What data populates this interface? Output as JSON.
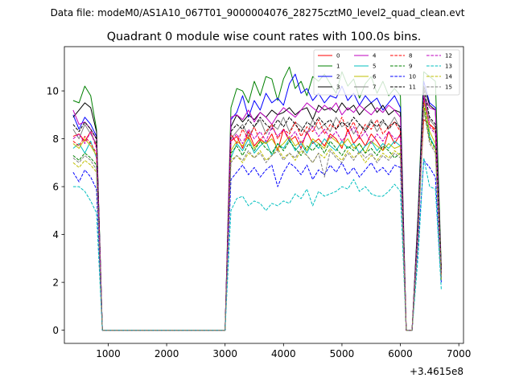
{
  "chart_data": {
    "type": "line",
    "suptitle": "Data file: modeM0/AS1A10_067T01_9000004076_28275cztM0_level2_quad_clean.evt",
    "title": "Quadrant 0 module wise count rates with 100.0s bins.",
    "xlabel": "",
    "ylabel": "",
    "x_offset_label": "+3.4615e8",
    "xlim": [
      250,
      7080
    ],
    "ylim": [
      -0.55,
      11.85
    ],
    "x_ticks": [
      1000,
      2000,
      3000,
      4000,
      5000,
      6000,
      7000
    ],
    "y_ticks": [
      0,
      2,
      4,
      6,
      8,
      10
    ],
    "legend_position": "top-right",
    "x": [
      400,
      500,
      600,
      700,
      800,
      900,
      1000,
      1100,
      1200,
      1300,
      1400,
      1500,
      1600,
      1700,
      1800,
      1900,
      2000,
      2100,
      2200,
      2300,
      2400,
      2500,
      2600,
      2700,
      2800,
      2900,
      3000,
      3100,
      3200,
      3300,
      3400,
      3500,
      3600,
      3700,
      3800,
      3900,
      4000,
      4100,
      4200,
      4300,
      4400,
      4500,
      4600,
      4700,
      4800,
      4900,
      5000,
      5100,
      5200,
      5300,
      5400,
      5500,
      5600,
      5700,
      5800,
      5900,
      6000,
      6100,
      6200,
      6300,
      6400,
      6500,
      6600,
      6700
    ],
    "series": [
      {
        "name": "0",
        "color": "#ff0000",
        "dash": "solid",
        "values": [
          8.1,
          8.2,
          7.9,
          8.3,
          7.7,
          0.0,
          0.0,
          0.0,
          0.0,
          0.0,
          0.0,
          0.0,
          0.0,
          0.0,
          0.0,
          0.0,
          0.0,
          0.0,
          0.0,
          0.0,
          0.0,
          0.0,
          0.0,
          0.0,
          0.0,
          0.0,
          0.0,
          7.9,
          8.1,
          7.6,
          8.3,
          7.7,
          8.0,
          7.8,
          8.2,
          7.5,
          8.4,
          7.9,
          8.1,
          7.6,
          8.3,
          7.8,
          8.0,
          7.7,
          8.2,
          8.0,
          7.6,
          8.4,
          7.8,
          8.1,
          7.7,
          8.2,
          7.9,
          7.5,
          8.3,
          7.8,
          8.2,
          0.0,
          0.0,
          4.5,
          8.8,
          8.6,
          8.4,
          2.6
        ]
      },
      {
        "name": "1",
        "color": "#008000",
        "dash": "solid",
        "values": [
          9.6,
          9.5,
          10.2,
          9.8,
          8.4,
          0.0,
          0.0,
          0.0,
          0.0,
          0.0,
          0.0,
          0.0,
          0.0,
          0.0,
          0.0,
          0.0,
          0.0,
          0.0,
          0.0,
          0.0,
          0.0,
          0.0,
          0.0,
          0.0,
          0.0,
          0.0,
          0.0,
          9.3,
          10.1,
          10.0,
          9.5,
          10.4,
          9.8,
          10.6,
          10.5,
          9.6,
          10.5,
          11.0,
          10.1,
          10.4,
          9.8,
          10.6,
          10.4,
          10.7,
          10.3,
          9.9,
          10.8,
          10.2,
          10.5,
          9.7,
          10.3,
          10.6,
          9.9,
          10.4,
          9.8,
          10.1,
          9.8,
          0.0,
          0.0,
          4.8,
          10.8,
          10.6,
          10.4,
          2.6
        ]
      },
      {
        "name": "2",
        "color": "#0000ff",
        "dash": "solid",
        "values": [
          9.0,
          8.4,
          8.9,
          8.6,
          8.1,
          0.0,
          0.0,
          0.0,
          0.0,
          0.0,
          0.0,
          0.0,
          0.0,
          0.0,
          0.0,
          0.0,
          0.0,
          0.0,
          0.0,
          0.0,
          0.0,
          0.0,
          0.0,
          0.0,
          0.0,
          0.0,
          0.0,
          8.8,
          9.1,
          9.8,
          8.9,
          9.6,
          9.2,
          9.9,
          9.5,
          9.7,
          9.4,
          10.3,
          10.7,
          9.9,
          10.1,
          9.6,
          9.9,
          9.5,
          9.8,
          9.7,
          10.2,
          9.6,
          9.9,
          9.4,
          9.8,
          9.5,
          9.7,
          9.2,
          9.5,
          9.8,
          9.3,
          0.0,
          0.0,
          4.6,
          10.4,
          9.5,
          9.3,
          2.4
        ]
      },
      {
        "name": "3",
        "color": "#000000",
        "dash": "solid",
        "values": [
          8.9,
          9.2,
          9.5,
          9.3,
          8.3,
          0.0,
          0.0,
          0.0,
          0.0,
          0.0,
          0.0,
          0.0,
          0.0,
          0.0,
          0.0,
          0.0,
          0.0,
          0.0,
          0.0,
          0.0,
          0.0,
          0.0,
          0.0,
          0.0,
          0.0,
          0.0,
          0.0,
          8.5,
          9.0,
          8.7,
          9.0,
          8.8,
          9.1,
          8.9,
          9.2,
          9.0,
          9.1,
          9.3,
          9.0,
          9.2,
          9.3,
          8.8,
          9.4,
          9.2,
          9.3,
          9.1,
          9.5,
          9.2,
          9.4,
          9.0,
          9.3,
          9.5,
          9.1,
          9.4,
          9.0,
          9.2,
          9.1,
          0.0,
          0.0,
          4.6,
          10.2,
          9.4,
          9.2,
          2.5
        ]
      },
      {
        "name": "4",
        "color": "#bf00bf",
        "dash": "solid",
        "values": [
          9.2,
          8.6,
          8.7,
          8.4,
          8.0,
          0.0,
          0.0,
          0.0,
          0.0,
          0.0,
          0.0,
          0.0,
          0.0,
          0.0,
          0.0,
          0.0,
          0.0,
          0.0,
          0.0,
          0.0,
          0.0,
          0.0,
          0.0,
          0.0,
          0.0,
          0.0,
          0.0,
          8.9,
          9.0,
          8.8,
          9.2,
          8.7,
          9.1,
          8.9,
          8.6,
          9.0,
          9.3,
          9.1,
          8.9,
          9.2,
          9.5,
          9.3,
          9.1,
          9.4,
          9.2,
          9.5,
          9.0,
          9.3,
          9.1,
          9.4,
          9.2,
          9.0,
          9.3,
          9.1,
          9.4,
          9.2,
          8.9,
          0.0,
          0.0,
          4.4,
          9.8,
          9.3,
          9.2,
          2.3
        ]
      },
      {
        "name": "5",
        "color": "#00bfbf",
        "dash": "solid",
        "values": [
          7.6,
          7.8,
          7.4,
          7.9,
          7.2,
          0.0,
          0.0,
          0.0,
          0.0,
          0.0,
          0.0,
          0.0,
          0.0,
          0.0,
          0.0,
          0.0,
          0.0,
          0.0,
          0.0,
          0.0,
          0.0,
          0.0,
          0.0,
          0.0,
          0.0,
          0.0,
          0.0,
          7.2,
          7.8,
          7.5,
          8.0,
          7.4,
          7.7,
          7.9,
          7.3,
          7.8,
          7.6,
          8.0,
          7.5,
          7.8,
          7.4,
          7.9,
          7.6,
          8.0,
          7.7,
          7.5,
          7.9,
          7.6,
          7.8,
          7.4,
          7.7,
          7.9,
          7.5,
          7.8,
          7.6,
          7.9,
          7.7,
          0.0,
          0.0,
          4.0,
          9.9,
          8.1,
          7.6,
          2.2
        ]
      },
      {
        "name": "6",
        "color": "#bfbf00",
        "dash": "solid",
        "values": [
          7.8,
          7.6,
          8.0,
          7.7,
          7.3,
          0.0,
          0.0,
          0.0,
          0.0,
          0.0,
          0.0,
          0.0,
          0.0,
          0.0,
          0.0,
          0.0,
          0.0,
          0.0,
          0.0,
          0.0,
          0.0,
          0.0,
          0.0,
          0.0,
          0.0,
          0.0,
          0.0,
          7.5,
          7.9,
          7.7,
          8.1,
          7.6,
          7.9,
          7.8,
          8.0,
          7.6,
          7.8,
          8.1,
          7.7,
          7.9,
          7.5,
          8.0,
          7.8,
          7.6,
          8.1,
          7.9,
          7.7,
          8.0,
          7.6,
          7.8,
          7.4,
          7.9,
          7.7,
          7.5,
          7.8,
          7.6,
          7.7,
          0.0,
          0.0,
          4.1,
          9.6,
          8.3,
          7.8,
          2.3
        ]
      },
      {
        "name": "7",
        "color": "#808080",
        "dash": "solid",
        "values": [
          8.4,
          8.0,
          8.6,
          8.2,
          7.8,
          0.0,
          0.0,
          0.0,
          0.0,
          0.0,
          0.0,
          0.0,
          0.0,
          0.0,
          0.0,
          0.0,
          0.0,
          0.0,
          0.0,
          0.0,
          0.0,
          0.0,
          0.0,
          0.0,
          0.0,
          0.0,
          0.0,
          8.0,
          8.3,
          8.6,
          8.1,
          8.5,
          8.8,
          8.2,
          8.6,
          8.4,
          8.9,
          8.3,
          8.7,
          8.5,
          8.2,
          8.8,
          8.4,
          8.6,
          8.3,
          8.9,
          8.5,
          8.7,
          8.2,
          8.6,
          8.4,
          8.8,
          8.3,
          8.7,
          8.5,
          8.9,
          8.4,
          0.0,
          0.0,
          4.3,
          9.9,
          8.8,
          8.5,
          2.4
        ]
      },
      {
        "name": "8",
        "color": "#ff0000",
        "dash": "dashed",
        "values": [
          7.9,
          7.7,
          8.1,
          7.8,
          7.4,
          0.0,
          0.0,
          0.0,
          0.0,
          0.0,
          0.0,
          0.0,
          0.0,
          0.0,
          0.0,
          0.0,
          0.0,
          0.0,
          0.0,
          0.0,
          0.0,
          0.0,
          0.0,
          0.0,
          0.0,
          0.0,
          0.0,
          8.2,
          7.8,
          8.4,
          8.0,
          8.5,
          7.9,
          8.3,
          8.6,
          8.0,
          8.4,
          8.2,
          8.7,
          8.1,
          8.5,
          8.3,
          8.8,
          8.2,
          8.6,
          8.4,
          8.9,
          8.3,
          8.7,
          8.1,
          8.6,
          8.4,
          8.8,
          8.2,
          8.5,
          8.7,
          8.3,
          0.0,
          0.0,
          4.2,
          9.7,
          8.6,
          8.3,
          2.3
        ]
      },
      {
        "name": "9",
        "color": "#008000",
        "dash": "dashed",
        "values": [
          7.3,
          7.1,
          7.4,
          7.2,
          6.9,
          0.0,
          0.0,
          0.0,
          0.0,
          0.0,
          0.0,
          0.0,
          0.0,
          0.0,
          0.0,
          0.0,
          0.0,
          0.0,
          0.0,
          0.0,
          0.0,
          0.0,
          0.0,
          0.0,
          0.0,
          0.0,
          0.0,
          7.4,
          7.7,
          7.3,
          7.8,
          7.5,
          7.9,
          7.6,
          7.4,
          7.8,
          7.5,
          7.9,
          7.6,
          7.3,
          7.7,
          7.5,
          7.8,
          7.4,
          7.9,
          7.6,
          7.3,
          7.7,
          7.5,
          7.8,
          7.4,
          7.6,
          7.3,
          7.7,
          7.5,
          7.2,
          7.4,
          0.0,
          0.0,
          3.9,
          9.4,
          8.0,
          7.6,
          2.1
        ]
      },
      {
        "name": "10",
        "color": "#0000ff",
        "dash": "dashed",
        "values": [
          6.6,
          6.2,
          6.7,
          6.4,
          5.9,
          0.0,
          0.0,
          0.0,
          0.0,
          0.0,
          0.0,
          0.0,
          0.0,
          0.0,
          0.0,
          0.0,
          0.0,
          0.0,
          0.0,
          0.0,
          0.0,
          0.0,
          0.0,
          0.0,
          0.0,
          0.0,
          0.0,
          6.3,
          6.6,
          6.9,
          6.5,
          6.8,
          6.4,
          6.7,
          6.9,
          6.0,
          6.6,
          7.0,
          6.8,
          6.5,
          6.9,
          6.3,
          6.7,
          6.5,
          6.9,
          6.6,
          7.0,
          6.5,
          6.8,
          6.4,
          6.7,
          7.0,
          6.6,
          6.8,
          6.5,
          6.9,
          6.8,
          0.0,
          0.0,
          3.5,
          7.1,
          6.8,
          6.4,
          2.0
        ]
      },
      {
        "name": "11",
        "color": "#000000",
        "dash": "dashed",
        "values": [
          8.6,
          8.3,
          8.7,
          8.4,
          8.0,
          0.0,
          0.0,
          0.0,
          0.0,
          0.0,
          0.0,
          0.0,
          0.0,
          0.0,
          0.0,
          0.0,
          0.0,
          0.0,
          0.0,
          0.0,
          0.0,
          0.0,
          0.0,
          0.0,
          0.0,
          0.0,
          0.0,
          8.3,
          8.6,
          8.4,
          8.8,
          8.5,
          8.9,
          8.6,
          8.4,
          8.8,
          8.5,
          8.9,
          8.6,
          8.3,
          8.7,
          8.5,
          8.9,
          8.6,
          8.8,
          8.4,
          8.7,
          8.5,
          8.9,
          8.6,
          8.3,
          8.7,
          8.5,
          8.8,
          8.4,
          8.7,
          8.5,
          0.0,
          0.0,
          4.3,
          10.1,
          8.9,
          8.6,
          2.4
        ]
      },
      {
        "name": "12",
        "color": "#bf00bf",
        "dash": "dashed",
        "values": [
          8.0,
          8.2,
          7.8,
          8.3,
          7.6,
          0.0,
          0.0,
          0.0,
          0.0,
          0.0,
          0.0,
          0.0,
          0.0,
          0.0,
          0.0,
          0.0,
          0.0,
          0.0,
          0.0,
          0.0,
          0.0,
          0.0,
          0.0,
          0.0,
          0.0,
          0.0,
          0.0,
          7.9,
          8.2,
          7.8,
          8.4,
          8.0,
          8.3,
          7.9,
          8.5,
          8.1,
          8.4,
          8.0,
          8.3,
          7.8,
          8.2,
          8.5,
          8.1,
          8.4,
          8.0,
          8.3,
          7.9,
          8.2,
          8.5,
          8.0,
          8.3,
          7.8,
          8.2,
          7.9,
          8.3,
          8.0,
          8.1,
          0.0,
          0.0,
          4.2,
          9.8,
          8.5,
          8.2,
          2.3
        ]
      },
      {
        "name": "13",
        "color": "#00bfbf",
        "dash": "dashed",
        "values": [
          6.0,
          6.0,
          5.8,
          5.4,
          4.9,
          0.0,
          0.0,
          0.0,
          0.0,
          0.0,
          0.0,
          0.0,
          0.0,
          0.0,
          0.0,
          0.0,
          0.0,
          0.0,
          0.0,
          0.0,
          0.0,
          0.0,
          0.0,
          0.0,
          0.0,
          0.0,
          0.0,
          5.0,
          5.5,
          5.6,
          5.2,
          5.4,
          5.3,
          5.0,
          5.3,
          5.2,
          5.4,
          5.3,
          5.7,
          5.5,
          5.9,
          5.2,
          5.8,
          5.6,
          5.7,
          5.8,
          6.0,
          5.9,
          6.3,
          5.8,
          6.0,
          5.7,
          5.6,
          5.6,
          5.8,
          6.1,
          5.8,
          0.0,
          0.0,
          3.0,
          7.2,
          6.0,
          5.9,
          1.7
        ]
      },
      {
        "name": "14",
        "color": "#bfbf00",
        "dash": "dashed",
        "values": [
          7.0,
          6.8,
          7.1,
          6.9,
          6.6,
          0.0,
          0.0,
          0.0,
          0.0,
          0.0,
          0.0,
          0.0,
          0.0,
          0.0,
          0.0,
          0.0,
          0.0,
          0.0,
          0.0,
          0.0,
          0.0,
          0.0,
          0.0,
          0.0,
          0.0,
          0.0,
          0.0,
          7.1,
          7.3,
          7.0,
          7.4,
          7.2,
          7.5,
          7.1,
          7.3,
          7.6,
          7.2,
          7.4,
          7.1,
          7.5,
          7.3,
          7.0,
          7.4,
          7.2,
          7.6,
          7.3,
          7.1,
          7.5,
          7.2,
          7.4,
          7.0,
          7.3,
          7.1,
          7.4,
          7.2,
          7.5,
          7.3,
          0.0,
          0.0,
          3.8,
          9.3,
          7.9,
          7.5,
          2.1
        ]
      },
      {
        "name": "15",
        "color": "#808080",
        "dash": "dashed",
        "values": [
          7.2,
          7.0,
          7.3,
          7.1,
          6.7,
          0.0,
          0.0,
          0.0,
          0.0,
          0.0,
          0.0,
          0.0,
          0.0,
          0.0,
          0.0,
          0.0,
          0.0,
          0.0,
          0.0,
          0.0,
          0.0,
          0.0,
          0.0,
          0.0,
          0.0,
          0.0,
          0.0,
          7.0,
          7.3,
          7.1,
          7.5,
          7.2,
          7.4,
          7.0,
          7.3,
          7.5,
          7.1,
          7.4,
          7.2,
          7.6,
          7.3,
          7.0,
          7.4,
          6.4,
          7.5,
          7.2,
          7.0,
          7.4,
          7.1,
          7.5,
          7.2,
          7.4,
          7.0,
          7.3,
          7.1,
          7.4,
          7.2,
          0.0,
          0.0,
          3.8,
          9.2,
          7.8,
          7.4,
          2.1
        ]
      }
    ]
  }
}
